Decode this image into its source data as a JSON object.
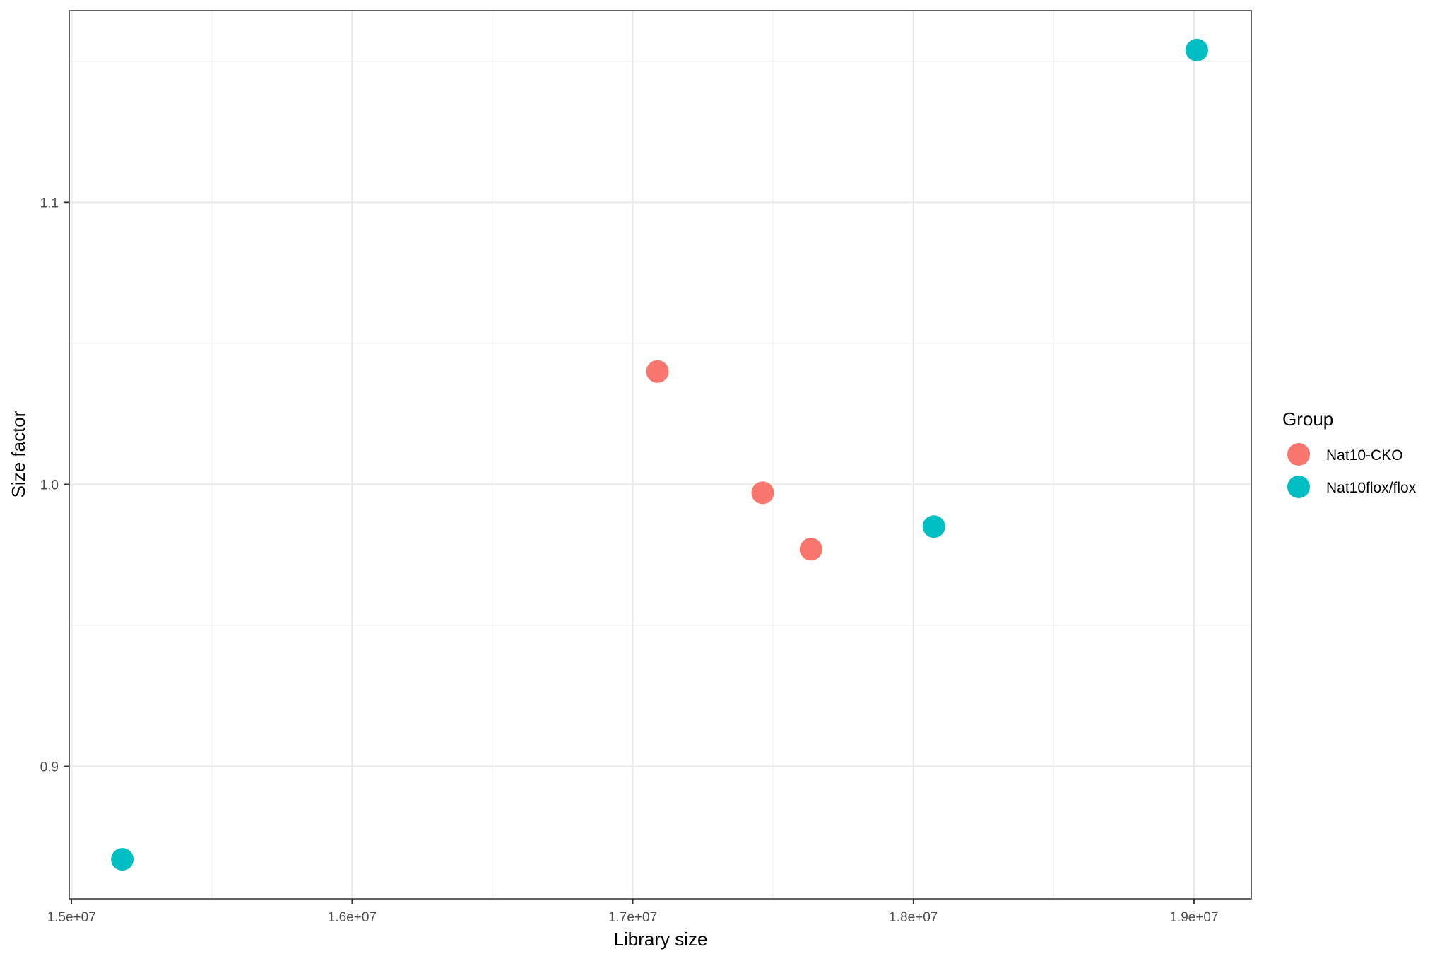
{
  "chart_data": {
    "type": "scatter",
    "title": "",
    "xlabel": "Library size",
    "ylabel": "Size factor",
    "xlim": [
      14992000,
      19204000
    ],
    "ylim": [
      0.853,
      1.168
    ],
    "x_ticks": [
      15000000,
      16000000,
      17000000,
      18000000,
      19000000
    ],
    "x_tick_labels": [
      "1.5e+07",
      "1.6e+07",
      "1.7e+07",
      "1.8e+07",
      "1.9e+07"
    ],
    "x_minor_ticks": [
      15500000,
      16500000,
      17500000,
      18500000
    ],
    "y_ticks": [
      0.9,
      1.0,
      1.1
    ],
    "y_tick_labels": [
      "0.9",
      "1.0",
      "1.1"
    ],
    "y_minor_ticks": [
      0.95,
      1.05,
      1.15
    ],
    "grid": true,
    "legend": {
      "title": "Group",
      "position": "right"
    },
    "series": [
      {
        "name": "Nat10-CKO",
        "color": "#F8766D",
        "points": [
          {
            "x": 17088000,
            "y": 1.04
          },
          {
            "x": 17463000,
            "y": 0.997
          },
          {
            "x": 17635000,
            "y": 0.977
          }
        ]
      },
      {
        "name": "Nat10flox/flox",
        "color": "#00BFC4",
        "points": [
          {
            "x": 15181000,
            "y": 0.867
          },
          {
            "x": 18073000,
            "y": 0.985
          },
          {
            "x": 19010000,
            "y": 1.154
          }
        ]
      }
    ]
  },
  "theme": {
    "panel_border": "#333333",
    "grid_major": "#ebebeb",
    "grid_minor": "#f2f2f2",
    "tick_color": "#333333",
    "tick_label_color": "#4d4d4d"
  }
}
